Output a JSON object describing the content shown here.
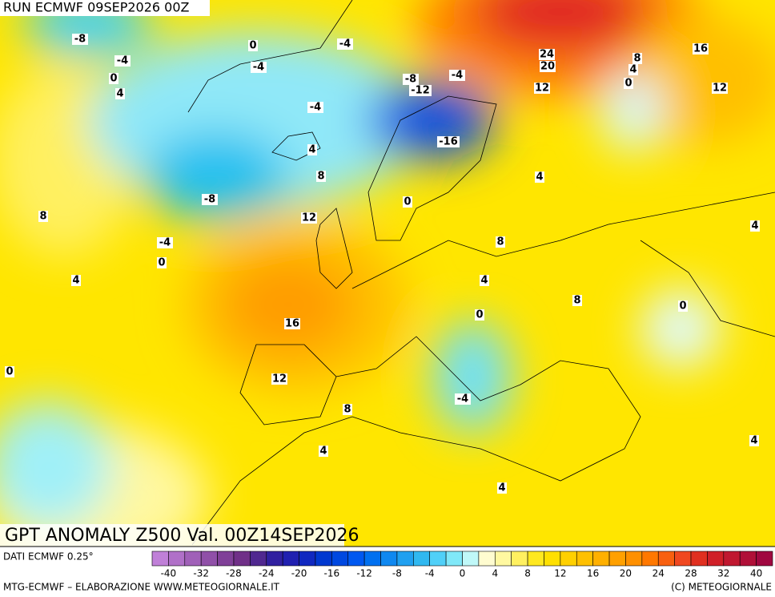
{
  "header": {
    "run": "RUN ECMWF 09SEP2026 00Z"
  },
  "map": {
    "title": "GPT ANOMALY Z500 Val. 00Z14SEP2026",
    "contour_labels": [
      -8,
      -4,
      0,
      4,
      0,
      -4,
      -4,
      -8,
      -4,
      -12,
      24,
      20,
      8,
      4,
      16,
      0,
      12,
      12,
      -4,
      -16,
      4,
      8,
      4,
      -8,
      0,
      8,
      12,
      4,
      -4,
      8,
      0,
      4,
      4,
      8,
      0,
      16,
      0,
      0,
      12,
      -4,
      8,
      4,
      4,
      4
    ]
  },
  "legend": {
    "source": "DATI ECMWF 0.25°",
    "colors": [
      "#c080d8",
      "#b070c8",
      "#a060b8",
      "#9050a8",
      "#804098",
      "#703088",
      "#502890",
      "#3020a0",
      "#2020b0",
      "#1028c0",
      "#0038d0",
      "#0048e0",
      "#0058f0",
      "#0070f0",
      "#1088f0",
      "#20a0f0",
      "#30b8f0",
      "#50d0f8",
      "#80e8f8",
      "#c0f8f8",
      "#fffcd0",
      "#fff8a0",
      "#fff060",
      "#ffe820",
      "#ffe000",
      "#ffd000",
      "#ffc000",
      "#ffb000",
      "#ffa000",
      "#ff9000",
      "#ff7800",
      "#f86010",
      "#f04820",
      "#e03020",
      "#d02028",
      "#c01830",
      "#b01038",
      "#a00840"
    ],
    "labels": [
      -40,
      -32,
      -28,
      -24,
      -20,
      -16,
      -12,
      -8,
      -4,
      0,
      4,
      8,
      12,
      16,
      20,
      24,
      28,
      32,
      40
    ]
  },
  "footer": {
    "left": "MTG-ECMWF – ELABORAZIONE WWW.METEOGIORNALE.IT",
    "right": "(C) METEOGIORNALE"
  }
}
